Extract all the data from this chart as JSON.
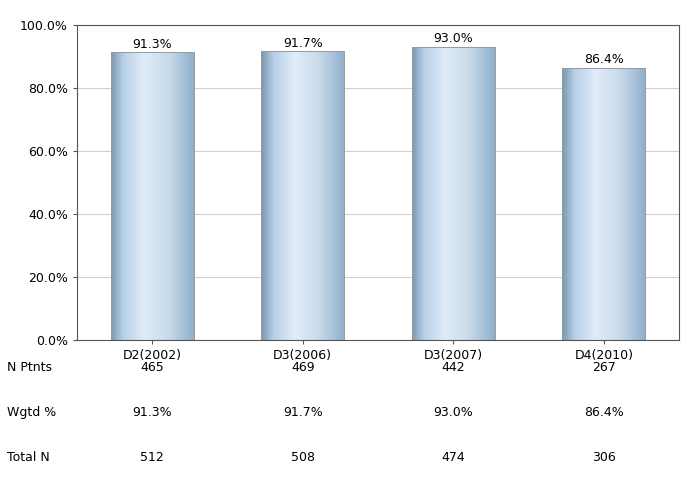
{
  "categories": [
    "D2(2002)",
    "D3(2006)",
    "D3(2007)",
    "D4(2010)"
  ],
  "values": [
    91.3,
    91.7,
    93.0,
    86.4
  ],
  "bar_labels": [
    "91.3%",
    "91.7%",
    "93.0%",
    "86.4%"
  ],
  "n_ptnts": [
    "465",
    "469",
    "442",
    "267"
  ],
  "wgtd_pct": [
    "91.3%",
    "91.7%",
    "93.0%",
    "86.4%"
  ],
  "total_n": [
    "512",
    "508",
    "474",
    "306"
  ],
  "ylim": [
    0,
    100
  ],
  "yticks": [
    0,
    20,
    40,
    60,
    80,
    100
  ],
  "ytick_labels": [
    "0.0%",
    "20.0%",
    "40.0%",
    "60.0%",
    "80.0%",
    "100.0%"
  ],
  "background_color": "#ffffff",
  "grid_color": "#d0d0d0",
  "text_color": "#000000",
  "bar_width": 0.55,
  "table_row_labels": [
    "N Ptnts",
    "Wgtd %",
    "Total N"
  ],
  "font_size": 9,
  "label_font_size": 9,
  "border_color": "#aaaaaa"
}
